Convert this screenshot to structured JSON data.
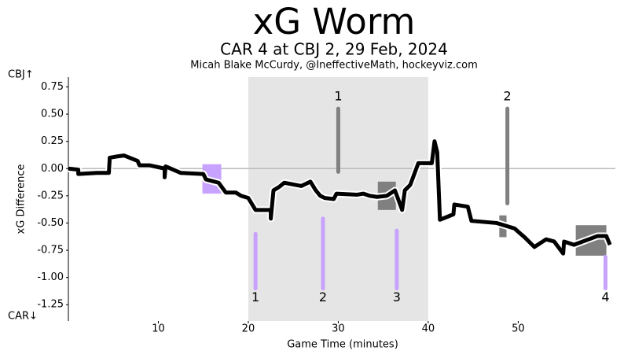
{
  "chart_data": {
    "type": "line",
    "title": "xG Worm",
    "subtitle": "CAR 4 at CBJ 2, 29 Feb, 2024",
    "credit": "Micah Blake McCurdy, @IneffectiveMath, hockeyviz.com",
    "x_label": "Game Time (minutes)",
    "y_label": "xG Difference",
    "top_team_label": "CBJ↑",
    "bottom_team_label": "CAR↓",
    "xlim": [
      0,
      60.8
    ],
    "ylim": [
      -1.4,
      0.84
    ],
    "xticks": [
      10,
      20,
      30,
      40,
      50
    ],
    "yticks": [
      0.75,
      {
        "value": 0.5,
        "label": "0.50"
      },
      0.25,
      {
        "value": 0,
        "label": "0.00"
      },
      -0.25,
      {
        "value": -0.5,
        "label": "-0.50"
      },
      -0.75,
      {
        "value": -1,
        "label": "-1.00"
      },
      -1.25
    ],
    "grid": false,
    "reference_line": 0,
    "shaded_period": [
      20,
      40
    ],
    "series": [
      {
        "color": "#000000",
        "x": [
          0,
          1.1,
          1.1,
          3.2,
          4.5,
          4.6,
          5.3,
          6.2,
          7.7,
          7.9,
          9,
          10.7,
          10.7,
          10.8,
          12.5,
          15,
          15.3,
          16.7,
          17.5,
          18.6,
          19.2,
          20,
          20.8,
          22.5,
          22.5,
          22.8,
          23.4,
          24,
          25.9,
          26.9,
          27.5,
          28,
          28.5,
          29.5,
          29.8,
          32.1,
          32.8,
          33.5,
          34.3,
          35.4,
          36.3,
          37.1,
          37.4,
          38,
          38.9,
          40.4,
          40.7,
          41,
          41.3,
          42.8,
          42.9,
          44.4,
          44.8,
          47.6,
          49.6,
          50,
          50.7,
          51.8,
          53.1,
          54,
          55,
          55.1,
          56.2,
          58.8,
          59.8,
          60.2
        ],
        "values": [
          0,
          -0.01,
          -0.05,
          -0.04,
          -0.04,
          0.1,
          0.11,
          0.12,
          0.07,
          0.03,
          0.03,
          0,
          -0.08,
          0.02,
          -0.04,
          -0.05,
          -0.1,
          -0.13,
          -0.22,
          -0.22,
          -0.25,
          -0.27,
          -0.38,
          -0.38,
          -0.46,
          -0.2,
          -0.17,
          -0.13,
          -0.16,
          -0.12,
          -0.2,
          -0.25,
          -0.27,
          -0.28,
          -0.23,
          -0.24,
          -0.23,
          -0.25,
          -0.26,
          -0.25,
          -0.2,
          -0.38,
          -0.2,
          -0.15,
          0.05,
          0.05,
          0.25,
          0.15,
          -0.47,
          -0.42,
          -0.33,
          -0.35,
          -0.48,
          -0.5,
          -0.55,
          -0.58,
          -0.63,
          -0.72,
          -0.65,
          -0.67,
          -0.78,
          -0.67,
          -0.7,
          -0.62,
          -0.62,
          -0.7
        ]
      }
    ],
    "top_goals": {
      "color": "#808080",
      "x": [
        30,
        48.8
      ],
      "y_top": [
        0.55,
        0.55
      ],
      "y_bottom": [
        -0.03,
        -0.32
      ],
      "labels": [
        "1",
        "2"
      ]
    },
    "bottom_goals": {
      "color": "#c8a2ff",
      "x": [
        20.8,
        28.3,
        36.5,
        59.7
      ],
      "y_top": [
        -0.6,
        -0.46,
        -0.57,
        -0.81
      ],
      "y_bottom": [
        -1.1,
        -1.1,
        -1.1,
        -1.1
      ],
      "labels": [
        "1",
        "2",
        "3",
        "4"
      ]
    },
    "penalties": [
      {
        "color": "#c8a2ff",
        "start": 14.9,
        "end": 17.0,
        "top": 0.04,
        "bottom": -0.23
      },
      {
        "color": "#808080",
        "start": 34.4,
        "end": 36.4,
        "top": -0.12,
        "bottom": -0.38
      },
      {
        "color": "#808080",
        "start": 47.9,
        "end": 48.7,
        "top": -0.43,
        "bottom": -0.63
      },
      {
        "color": "#808080",
        "start": 56.4,
        "end": 59.8,
        "top": -0.52,
        "bottom": -0.8
      }
    ]
  }
}
